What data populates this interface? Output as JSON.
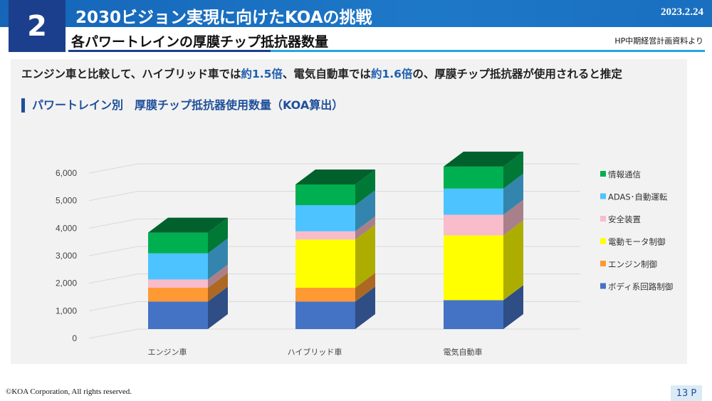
{
  "header": {
    "section_number": "2",
    "title": "2030ビジョン実現に向けたKOAの挑戦",
    "date": "2023.2.24",
    "subtitle": "各パワートレインの厚膜チップ抵抗器数量",
    "source": "HP中期経営計画資料より"
  },
  "lead": {
    "part1": "エンジン車と比較して、ハイブリッド車では",
    "hl1": "約1.5倍",
    "part2": "、電気自動車では",
    "hl2": "約1.6倍",
    "part3": "の、厚膜チップ抵抗器が使用されると推定"
  },
  "chart_data": {
    "type": "bar",
    "stacked": true,
    "three_d": true,
    "title": "パワートレイン別　厚膜チップ抵抗器使用数量（KOA算出）",
    "categories": [
      "エンジン車",
      "ハイブリッド車",
      "電気自動車"
    ],
    "ylim": [
      0,
      6000
    ],
    "yticks": [
      "0",
      "1,000",
      "2,000",
      "3,000",
      "4,000",
      "5,000",
      "6,000"
    ],
    "grid": true,
    "legend_position": "right",
    "series": [
      {
        "name": "ボディ系回路制御",
        "color": "#4472c4",
        "values": [
          1000,
          1000,
          1050
        ]
      },
      {
        "name": "エンジン制御",
        "color": "#ff9933",
        "values": [
          500,
          500,
          0
        ]
      },
      {
        "name": "電動モータ制御",
        "color": "#ffff00",
        "values": [
          0,
          1750,
          2350
        ]
      },
      {
        "name": "安全装置",
        "color": "#f8bccb",
        "values": [
          300,
          300,
          750
        ]
      },
      {
        "name": "ADAS･自動運転",
        "color": "#4dc3ff",
        "values": [
          950,
          950,
          950
        ]
      },
      {
        "name": "情報通信",
        "color": "#00b050",
        "values": [
          750,
          750,
          800
        ]
      }
    ]
  },
  "footer": {
    "copyright": "©KOA Corporation, All rights reserved.",
    "page": "13 P"
  }
}
